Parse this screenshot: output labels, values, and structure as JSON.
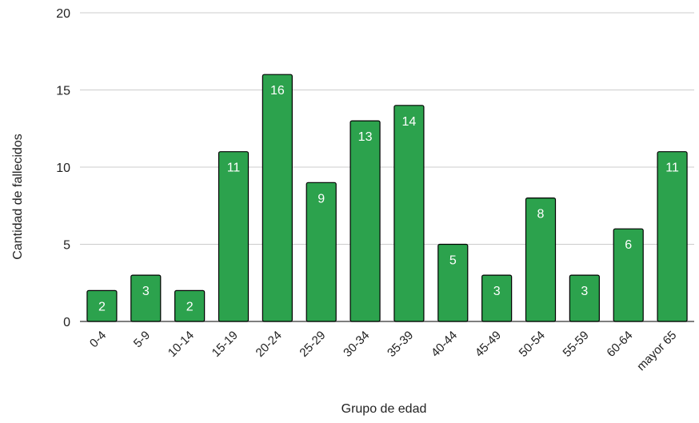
{
  "chart_data": {
    "type": "bar",
    "title": "",
    "xlabel": "Grupo de edad",
    "ylabel": "Cantidad de fallecidos",
    "categories": [
      "0-4",
      "5-9",
      "10-14",
      "15-19",
      "20-24",
      "25-29",
      "30-34",
      "35-39",
      "40-44",
      "45-49",
      "50-54",
      "55-59",
      "60-64",
      "mayor 65"
    ],
    "values": [
      2,
      3,
      2,
      11,
      16,
      9,
      13,
      14,
      5,
      3,
      8,
      3,
      6,
      11
    ],
    "ylim": [
      0,
      20
    ],
    "yticks": [
      0,
      5,
      10,
      15,
      20
    ],
    "grid": true,
    "legend": "none",
    "colors": {
      "bar_fill": "#2ca24d",
      "bar_stroke": "#000000",
      "grid": "#cccccc",
      "axis": "#333333",
      "text": "#222222",
      "data_label": "#ffffff"
    }
  }
}
